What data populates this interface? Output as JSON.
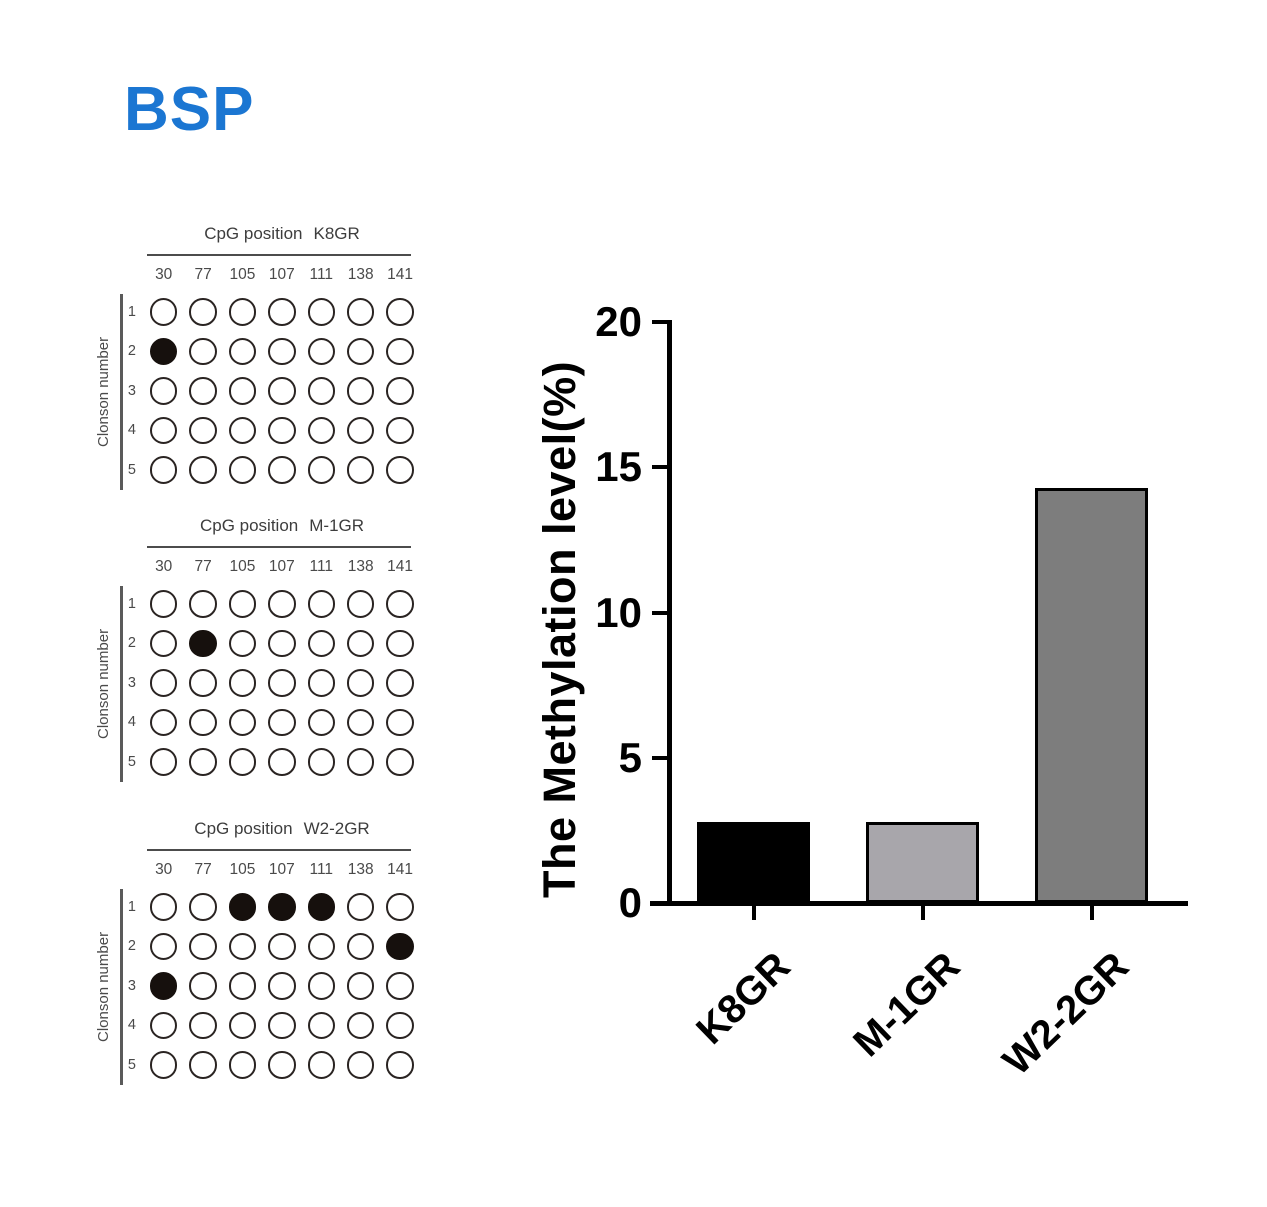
{
  "header": {
    "title": "BSP",
    "color": "#1b76d2"
  },
  "chart_data": [
    {
      "type": "dot_matrix",
      "title_prefix": "CpG position",
      "sample": "K8GR",
      "columns": [
        "30",
        "77",
        "105",
        "107",
        "111",
        "138",
        "141"
      ],
      "rows": [
        "1",
        "2",
        "3",
        "4",
        "5"
      ],
      "row_axis_label": "Clonson number",
      "filled_cells": [
        [
          1,
          0
        ]
      ],
      "circle_stroke": "#2a2422",
      "filled_color": "#16100d",
      "empty_color": "#ffffff"
    },
    {
      "type": "dot_matrix",
      "title_prefix": "CpG position",
      "sample": "M-1GR",
      "columns": [
        "30",
        "77",
        "105",
        "107",
        "111",
        "138",
        "141"
      ],
      "rows": [
        "1",
        "2",
        "3",
        "4",
        "5"
      ],
      "row_axis_label": "Clonson number",
      "filled_cells": [
        [
          1,
          1
        ]
      ],
      "circle_stroke": "#2a2422",
      "filled_color": "#16100d",
      "empty_color": "#ffffff"
    },
    {
      "type": "dot_matrix",
      "title_prefix": "CpG position",
      "sample": "W2-2GR",
      "columns": [
        "30",
        "77",
        "105",
        "107",
        "111",
        "138",
        "141"
      ],
      "rows": [
        "1",
        "2",
        "3",
        "4",
        "5"
      ],
      "row_axis_label": "Clonson number",
      "filled_cells": [
        [
          0,
          2
        ],
        [
          0,
          3
        ],
        [
          0,
          4
        ],
        [
          1,
          6
        ],
        [
          2,
          0
        ]
      ],
      "circle_stroke": "#2a2422",
      "filled_color": "#16100d",
      "empty_color": "#ffffff"
    },
    {
      "type": "bar",
      "categories": [
        "K8GR",
        "M-1GR",
        "W2-2GR"
      ],
      "values": [
        2.8,
        2.8,
        14.3
      ],
      "bar_colors": [
        "#000000",
        "#a8a6ab",
        "#7d7d7d"
      ],
      "bar_border_color": "#000000",
      "title": "",
      "xlabel": "",
      "ylabel": "The Methylation level(%)",
      "ylim": [
        0,
        20
      ],
      "yticks": [
        0,
        5,
        10,
        15,
        20
      ],
      "axis_color": "#000000",
      "grid": false,
      "legend": "none"
    }
  ]
}
